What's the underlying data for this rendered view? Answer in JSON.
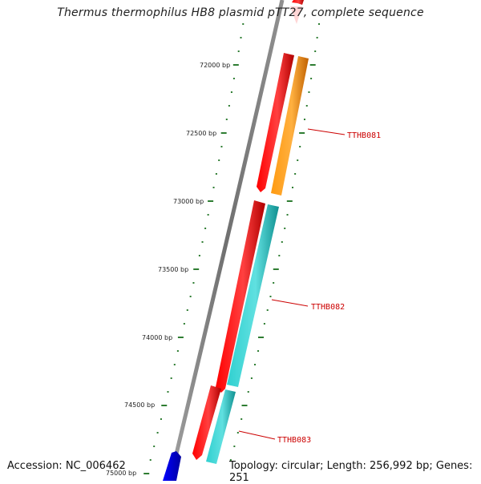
{
  "title": "Thermus thermophilus HB8 plasmid pTT27, complete sequence",
  "accession": "Accession: NC_006462",
  "summary": "Topology: circular; Length: 256,992 bp; Genes: 251",
  "ticks": [
    {
      "label": "72000 bp"
    },
    {
      "label": "72500 bp"
    },
    {
      "label": "73000 bp"
    },
    {
      "label": "73500 bp"
    },
    {
      "label": "74000 bp"
    },
    {
      "label": "74500 bp"
    },
    {
      "label": "75000 bp"
    }
  ],
  "genes": [
    {
      "label": "TTHB081",
      "color": "#ff8c00"
    },
    {
      "label": "TTHB082",
      "color": "#20c0c0"
    },
    {
      "label": "TTHB083",
      "color": "#20c0c0"
    }
  ],
  "colors": {
    "backbone": "#808080",
    "cds": "#ff0000",
    "tick": "#2e7d32",
    "other_gene": "#0000ff",
    "label": "#cc0000"
  }
}
